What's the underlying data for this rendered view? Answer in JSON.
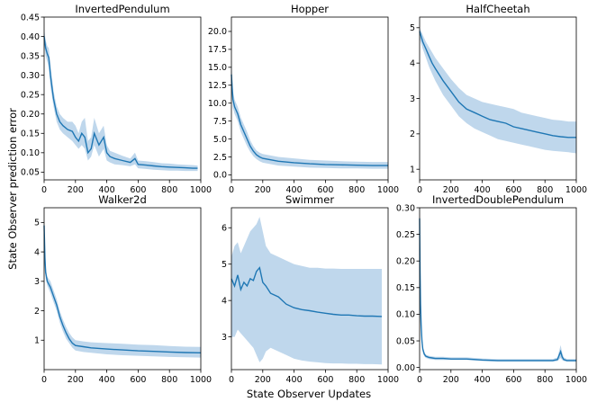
{
  "figure": {
    "ylabel": "State Observer prediction error",
    "xlabel": "State Observer Updates",
    "line_color": "#1f77b4",
    "band_color": "#aac9e6"
  },
  "chart_data": [
    {
      "type": "line",
      "title": "InvertedPendulum",
      "xlim": [
        0,
        1000
      ],
      "ylim": [
        0.03,
        0.45
      ],
      "xticks": [
        0,
        200,
        400,
        600,
        800,
        1000
      ],
      "yticks": [
        0.05,
        0.1,
        0.15,
        0.2,
        0.25,
        0.3,
        0.35,
        0.4,
        0.45
      ],
      "ytick_labels": [
        "0.05",
        "0.10",
        "0.15",
        "0.20",
        "0.25",
        "0.30",
        "0.35",
        "0.40",
        "0.45"
      ],
      "series": [
        {
          "x": [
            0,
            10,
            20,
            30,
            40,
            60,
            80,
            100,
            120,
            150,
            180,
            200,
            220,
            240,
            260,
            280,
            300,
            320,
            350,
            380,
            400,
            420,
            450,
            500,
            550,
            580,
            600,
            650,
            700,
            750,
            800,
            850,
            900,
            950,
            980
          ],
          "mean": [
            0.4,
            0.37,
            0.355,
            0.345,
            0.3,
            0.24,
            0.2,
            0.18,
            0.17,
            0.16,
            0.155,
            0.14,
            0.13,
            0.15,
            0.14,
            0.1,
            0.11,
            0.15,
            0.12,
            0.14,
            0.1,
            0.09,
            0.085,
            0.08,
            0.075,
            0.085,
            0.07,
            0.068,
            0.066,
            0.064,
            0.063,
            0.062,
            0.061,
            0.06,
            0.06
          ],
          "lower": [
            0.38,
            0.35,
            0.335,
            0.32,
            0.27,
            0.22,
            0.18,
            0.16,
            0.15,
            0.14,
            0.13,
            0.12,
            0.11,
            0.12,
            0.11,
            0.08,
            0.09,
            0.12,
            0.09,
            0.11,
            0.08,
            0.075,
            0.07,
            0.068,
            0.065,
            0.07,
            0.06,
            0.058,
            0.056,
            0.055,
            0.054,
            0.054,
            0.053,
            0.053,
            0.053
          ],
          "upper": [
            0.42,
            0.39,
            0.375,
            0.37,
            0.33,
            0.26,
            0.22,
            0.2,
            0.19,
            0.18,
            0.18,
            0.17,
            0.15,
            0.18,
            0.19,
            0.13,
            0.14,
            0.19,
            0.15,
            0.17,
            0.12,
            0.105,
            0.1,
            0.092,
            0.085,
            0.1,
            0.08,
            0.078,
            0.076,
            0.073,
            0.072,
            0.07,
            0.069,
            0.068,
            0.067
          ]
        }
      ]
    },
    {
      "type": "line",
      "title": "Hopper",
      "xlim": [
        0,
        1000
      ],
      "ylim": [
        -0.7,
        22
      ],
      "xticks": [
        0,
        200,
        400,
        600,
        800,
        1000
      ],
      "yticks": [
        0,
        2.5,
        5,
        7.5,
        10,
        12.5,
        15,
        17.5,
        20
      ],
      "ytick_labels": [
        "0.0",
        "2.5",
        "5.0",
        "7.5",
        "10.0",
        "12.5",
        "15.0",
        "17.5",
        "20.0"
      ],
      "series": [
        {
          "x": [
            0,
            5,
            10,
            20,
            40,
            60,
            80,
            100,
            120,
            140,
            160,
            180,
            200,
            250,
            300,
            400,
            500,
            600,
            700,
            800,
            900,
            1000
          ],
          "mean": [
            14,
            12,
            10.5,
            9.5,
            8.5,
            7,
            6,
            5,
            4,
            3.3,
            2.8,
            2.5,
            2.3,
            2.1,
            1.9,
            1.7,
            1.55,
            1.45,
            1.4,
            1.35,
            1.3,
            1.3
          ],
          "lower": [
            12,
            10.5,
            9.3,
            8.5,
            7.5,
            6,
            5,
            4,
            3.2,
            2.6,
            2.2,
            1.9,
            1.7,
            1.5,
            1.3,
            1.15,
            1.0,
            0.95,
            0.9,
            0.9,
            0.85,
            0.85
          ],
          "upper": [
            16,
            13.5,
            11.7,
            10.5,
            9.5,
            8,
            7,
            6,
            4.8,
            4,
            3.4,
            3.1,
            2.9,
            2.7,
            2.5,
            2.3,
            2.1,
            2.0,
            1.9,
            1.85,
            1.8,
            1.8
          ]
        }
      ]
    },
    {
      "type": "line",
      "title": "HalfCheetah",
      "xlim": [
        0,
        1000
      ],
      "ylim": [
        0.7,
        5.3
      ],
      "xticks": [
        0,
        200,
        400,
        600,
        800,
        1000
      ],
      "yticks": [
        1,
        2,
        3,
        4,
        5
      ],
      "ytick_labels": [
        "1",
        "2",
        "3",
        "4",
        "5"
      ],
      "series": [
        {
          "x": [
            0,
            20,
            40,
            60,
            80,
            100,
            150,
            200,
            250,
            300,
            350,
            400,
            450,
            500,
            550,
            600,
            650,
            700,
            750,
            800,
            850,
            900,
            950,
            1000
          ],
          "mean": [
            4.9,
            4.6,
            4.4,
            4.2,
            4.0,
            3.85,
            3.5,
            3.2,
            2.9,
            2.7,
            2.6,
            2.5,
            2.4,
            2.35,
            2.3,
            2.2,
            2.15,
            2.1,
            2.05,
            2.0,
            1.95,
            1.92,
            1.9,
            1.9
          ],
          "lower": [
            4.7,
            4.4,
            4.15,
            3.9,
            3.7,
            3.5,
            3.1,
            2.8,
            2.5,
            2.3,
            2.15,
            2.05,
            1.95,
            1.85,
            1.8,
            1.75,
            1.7,
            1.65,
            1.6,
            1.55,
            1.52,
            1.5,
            1.48,
            1.45
          ],
          "upper": [
            5.0,
            4.8,
            4.6,
            4.45,
            4.3,
            4.15,
            3.85,
            3.55,
            3.3,
            3.1,
            3.0,
            2.9,
            2.85,
            2.8,
            2.75,
            2.7,
            2.6,
            2.55,
            2.5,
            2.45,
            2.4,
            2.38,
            2.35,
            2.35
          ]
        }
      ]
    },
    {
      "type": "line",
      "title": "Walker2d",
      "xlim": [
        0,
        1000
      ],
      "ylim": [
        0,
        5.5
      ],
      "xticks": [
        0,
        200,
        400,
        600,
        800,
        1000
      ],
      "yticks": [
        1,
        2,
        3,
        4,
        5
      ],
      "ytick_labels": [
        "1",
        "2",
        "3",
        "4",
        "5"
      ],
      "series": [
        {
          "x": [
            0,
            5,
            10,
            20,
            40,
            60,
            80,
            100,
            120,
            140,
            160,
            180,
            200,
            250,
            300,
            400,
            500,
            600,
            700,
            800,
            900,
            1000
          ],
          "mean": [
            4.9,
            3.8,
            3.3,
            3.0,
            2.8,
            2.5,
            2.2,
            1.8,
            1.5,
            1.25,
            1.05,
            0.9,
            0.82,
            0.78,
            0.74,
            0.7,
            0.67,
            0.64,
            0.62,
            0.6,
            0.58,
            0.57
          ],
          "lower": [
            4.7,
            3.6,
            3.1,
            2.85,
            2.6,
            2.3,
            2.0,
            1.6,
            1.3,
            1.05,
            0.9,
            0.75,
            0.65,
            0.6,
            0.57,
            0.52,
            0.49,
            0.47,
            0.45,
            0.43,
            0.42,
            0.41
          ],
          "upper": [
            5.1,
            4.0,
            3.5,
            3.15,
            3.0,
            2.7,
            2.4,
            2.0,
            1.7,
            1.45,
            1.25,
            1.1,
            1.0,
            0.96,
            0.93,
            0.9,
            0.88,
            0.85,
            0.83,
            0.8,
            0.78,
            0.77
          ]
        }
      ]
    },
    {
      "type": "line",
      "title": "Swimmer",
      "xlim": [
        0,
        1000
      ],
      "ylim": [
        2.1,
        6.55
      ],
      "xticks": [
        0,
        200,
        400,
        600,
        800,
        1000
      ],
      "yticks": [
        3,
        4,
        5,
        6
      ],
      "ytick_labels": [
        "3",
        "4",
        "5",
        "6"
      ],
      "series": [
        {
          "x": [
            0,
            20,
            40,
            60,
            80,
            100,
            120,
            140,
            160,
            180,
            200,
            220,
            250,
            300,
            350,
            400,
            450,
            500,
            550,
            600,
            650,
            700,
            750,
            800,
            850,
            900,
            960
          ],
          "mean": [
            4.6,
            4.4,
            4.7,
            4.3,
            4.5,
            4.4,
            4.6,
            4.55,
            4.8,
            4.9,
            4.5,
            4.4,
            4.2,
            4.1,
            3.9,
            3.8,
            3.75,
            3.72,
            3.68,
            3.65,
            3.62,
            3.6,
            3.6,
            3.58,
            3.57,
            3.57,
            3.56
          ],
          "lower": [
            3.0,
            3.0,
            3.2,
            3.1,
            3.0,
            2.9,
            2.8,
            2.7,
            2.5,
            2.3,
            2.4,
            2.6,
            2.7,
            2.6,
            2.5,
            2.4,
            2.35,
            2.32,
            2.3,
            2.28,
            2.27,
            2.27,
            2.26,
            2.26,
            2.25,
            2.25,
            2.24
          ],
          "upper": [
            5.2,
            5.5,
            5.6,
            5.3,
            5.5,
            5.7,
            5.9,
            6.0,
            6.1,
            6.3,
            5.9,
            5.5,
            5.3,
            5.2,
            5.1,
            5.0,
            4.95,
            4.9,
            4.9,
            4.88,
            4.88,
            4.87,
            4.87,
            4.87,
            4.87,
            4.87,
            4.87
          ]
        }
      ]
    },
    {
      "type": "line",
      "title": "InvertedDoublePendulum",
      "xlim": [
        0,
        1000
      ],
      "ylim": [
        -0.004,
        0.3
      ],
      "xticks": [
        0,
        200,
        400,
        600,
        800,
        1000
      ],
      "yticks": [
        0,
        0.05,
        0.1,
        0.15,
        0.2,
        0.25,
        0.3
      ],
      "ytick_labels": [
        "0.00",
        "0.05",
        "0.10",
        "0.15",
        "0.20",
        "0.25",
        "0.30"
      ],
      "series": [
        {
          "x": [
            0,
            3,
            6,
            10,
            15,
            20,
            30,
            40,
            60,
            80,
            100,
            150,
            200,
            300,
            400,
            500,
            600,
            700,
            800,
            850,
            880,
            900,
            910,
            920,
            940,
            960,
            1000
          ],
          "mean": [
            0.28,
            0.18,
            0.12,
            0.08,
            0.05,
            0.035,
            0.025,
            0.021,
            0.019,
            0.018,
            0.017,
            0.017,
            0.016,
            0.016,
            0.014,
            0.013,
            0.013,
            0.013,
            0.013,
            0.013,
            0.015,
            0.03,
            0.02,
            0.015,
            0.013,
            0.013,
            0.013
          ],
          "lower": [
            0.26,
            0.16,
            0.1,
            0.068,
            0.042,
            0.029,
            0.021,
            0.018,
            0.016,
            0.015,
            0.014,
            0.014,
            0.014,
            0.014,
            0.012,
            0.011,
            0.011,
            0.011,
            0.011,
            0.011,
            0.012,
            0.018,
            0.014,
            0.012,
            0.011,
            0.011,
            0.011
          ],
          "upper": [
            0.3,
            0.2,
            0.14,
            0.092,
            0.058,
            0.041,
            0.029,
            0.024,
            0.022,
            0.021,
            0.02,
            0.02,
            0.019,
            0.019,
            0.017,
            0.016,
            0.016,
            0.016,
            0.016,
            0.016,
            0.019,
            0.042,
            0.028,
            0.019,
            0.016,
            0.016,
            0.016
          ]
        }
      ]
    }
  ]
}
